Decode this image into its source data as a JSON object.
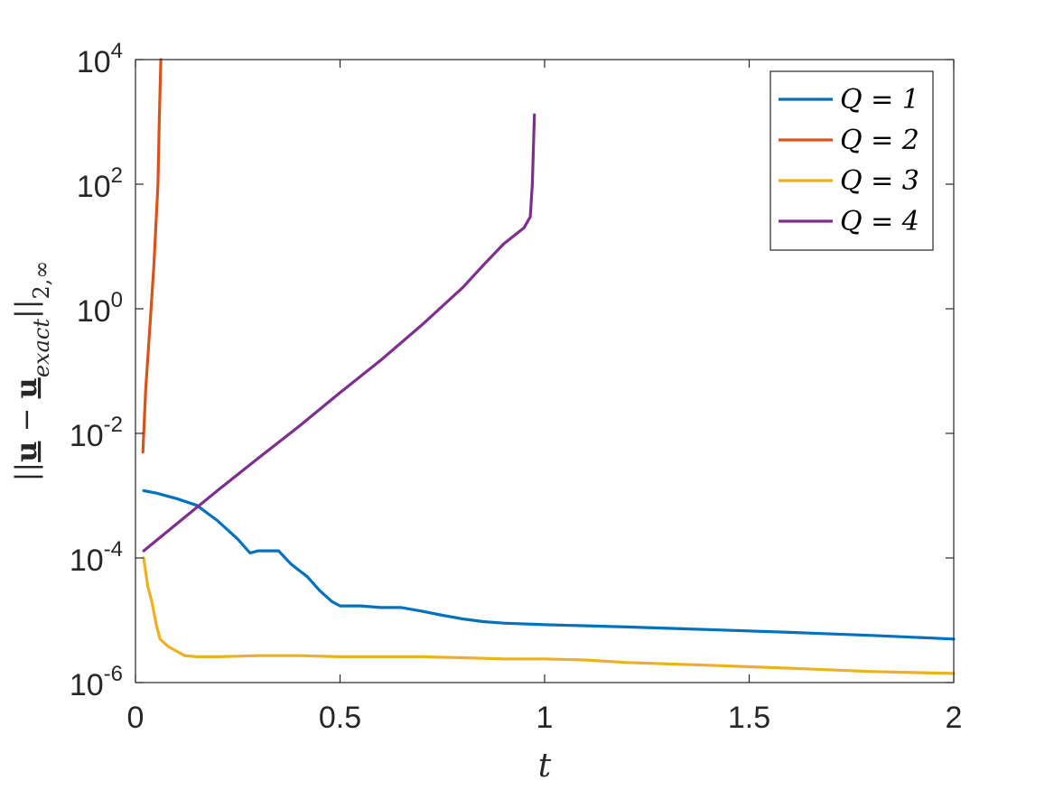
{
  "chart_data": {
    "type": "line",
    "title": "",
    "xlabel": "t",
    "ylabel": {
      "prefix": "||",
      "u": "u",
      "minus": " − ",
      "sub": "exact",
      "suffix": "||",
      "norm_sub": "2,∞"
    },
    "xlim": [
      0,
      2
    ],
    "ylim": [
      1e-06,
      10000.0
    ],
    "yscale": "log",
    "grid": false,
    "legend_position": "top-right",
    "xticks": [
      {
        "value": 0,
        "label": "0"
      },
      {
        "value": 0.5,
        "label": "0.5"
      },
      {
        "value": 1,
        "label": "1"
      },
      {
        "value": 1.5,
        "label": "1.5"
      },
      {
        "value": 2,
        "label": "2"
      }
    ],
    "yticks": [
      {
        "value": 1e-06,
        "base": "10",
        "exp": "-6"
      },
      {
        "value": 0.0001,
        "base": "10",
        "exp": "-4"
      },
      {
        "value": 0.01,
        "base": "10",
        "exp": "-2"
      },
      {
        "value": 1,
        "base": "10",
        "exp": "0"
      },
      {
        "value": 100,
        "base": "10",
        "exp": "2"
      },
      {
        "value": 10000,
        "base": "10",
        "exp": "4"
      }
    ],
    "series": [
      {
        "name": "Q = 1",
        "color": "#0072BD",
        "x": [
          0.02,
          0.05,
          0.1,
          0.15,
          0.2,
          0.25,
          0.28,
          0.3,
          0.35,
          0.38,
          0.42,
          0.45,
          0.48,
          0.5,
          0.55,
          0.6,
          0.65,
          0.7,
          0.75,
          0.8,
          0.85,
          0.9,
          1.0,
          1.2,
          1.4,
          1.6,
          1.8,
          2.0
        ],
        "y": [
          0.0012,
          0.0011,
          0.0009,
          0.0007,
          0.0004,
          0.0002,
          0.00012,
          0.00013,
          0.00013,
          8e-05,
          5e-05,
          3e-05,
          2e-05,
          1.7e-05,
          1.7e-05,
          1.6e-05,
          1.6e-05,
          1.4e-05,
          1.2e-05,
          1.05e-05,
          9.5e-06,
          9e-06,
          8.5e-06,
          7.8e-06,
          7.1e-06,
          6.4e-06,
          5.7e-06,
          5e-06
        ]
      },
      {
        "name": "Q = 2",
        "color": "#D95319",
        "x": [
          0.018,
          0.025,
          0.035,
          0.045,
          0.055,
          0.058,
          0.062
        ],
        "y": [
          0.005,
          0.05,
          0.5,
          5,
          100,
          1000,
          10000
        ]
      },
      {
        "name": "Q = 3",
        "color": "#EDB120",
        "x": [
          0.02,
          0.03,
          0.04,
          0.05,
          0.06,
          0.08,
          0.1,
          0.12,
          0.15,
          0.2,
          0.3,
          0.4,
          0.5,
          0.6,
          0.7,
          0.8,
          0.9,
          1.0,
          1.1,
          1.2,
          1.4,
          1.6,
          1.8,
          2.0
        ],
        "y": [
          0.0001,
          3.5e-05,
          2e-05,
          9e-06,
          5e-06,
          3.8e-06,
          3.2e-06,
          2.7e-06,
          2.6e-06,
          2.6e-06,
          2.7e-06,
          2.7e-06,
          2.6e-06,
          2.6e-06,
          2.6e-06,
          2.5e-06,
          2.4e-06,
          2.4e-06,
          2.3e-06,
          2.1e-06,
          1.9e-06,
          1.7e-06,
          1.5e-06,
          1.4e-06
        ]
      },
      {
        "name": "Q = 4",
        "color": "#7E2F8E",
        "x": [
          0.02,
          0.1,
          0.2,
          0.3,
          0.4,
          0.5,
          0.6,
          0.7,
          0.8,
          0.85,
          0.9,
          0.95,
          0.965,
          0.97,
          0.975
        ],
        "y": [
          0.00013,
          0.00035,
          0.0012,
          0.004,
          0.013,
          0.045,
          0.15,
          0.55,
          2.2,
          5,
          11,
          20,
          30,
          100,
          1300
        ]
      }
    ]
  }
}
